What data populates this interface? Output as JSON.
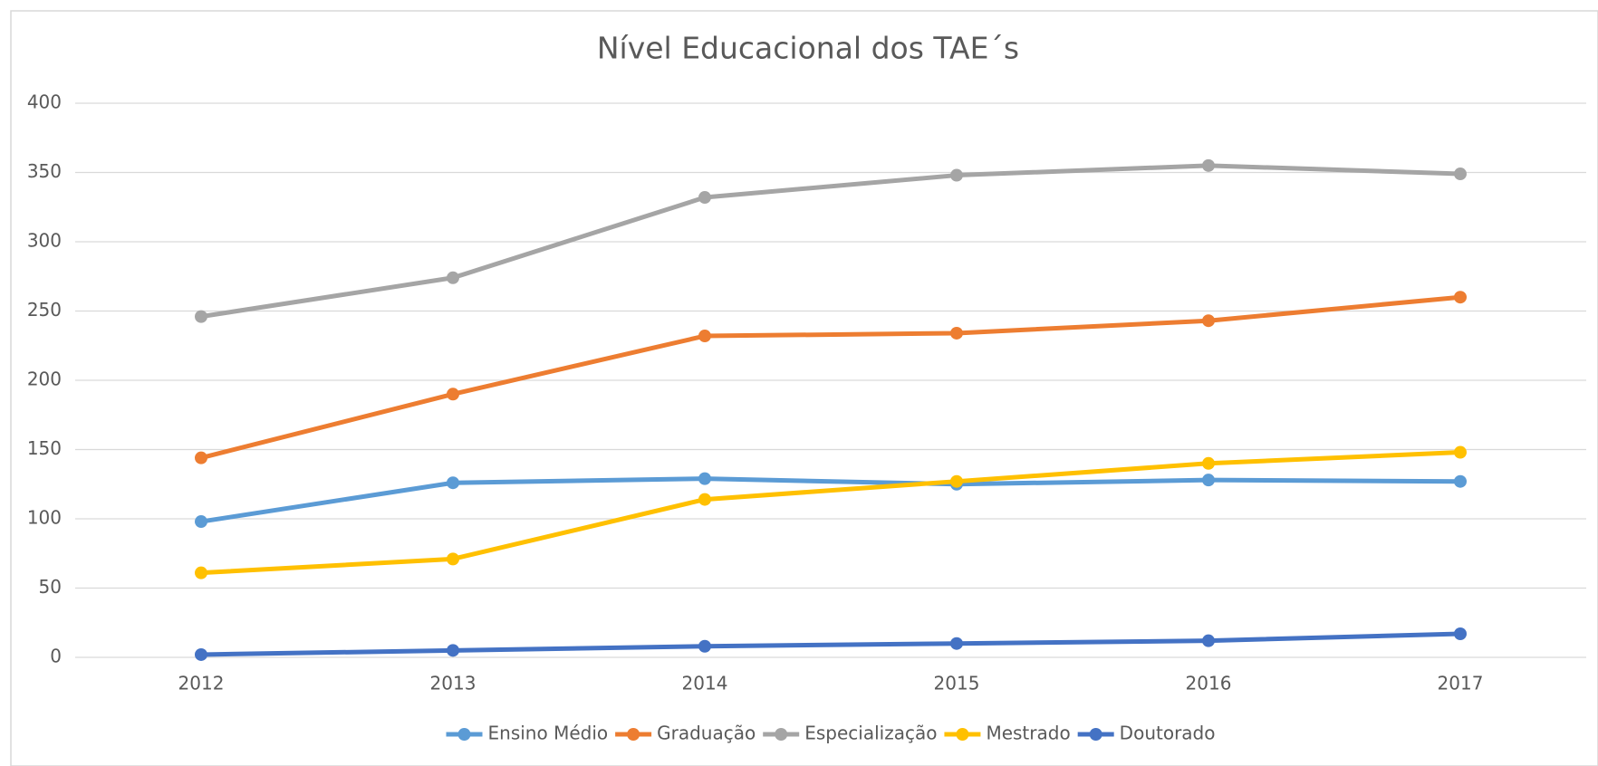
{
  "chart_data": {
    "type": "line",
    "title": "Nível Educacional dos TAE´s",
    "categories": [
      "2012",
      "2013",
      "2014",
      "2015",
      "2016",
      "2017"
    ],
    "series": [
      {
        "name": "Ensino Médio",
        "color": "#5b9bd5",
        "values": [
          98,
          126,
          129,
          125,
          128,
          127
        ]
      },
      {
        "name": "Graduação",
        "color": "#ed7d31",
        "values": [
          144,
          190,
          232,
          234,
          243,
          260
        ]
      },
      {
        "name": "Especialização",
        "color": "#a5a5a5",
        "values": [
          246,
          274,
          332,
          348,
          355,
          349
        ]
      },
      {
        "name": "Mestrado",
        "color": "#ffc000",
        "values": [
          61,
          71,
          114,
          127,
          140,
          148
        ]
      },
      {
        "name": "Doutorado",
        "color": "#4472c4",
        "values": [
          2,
          5,
          8,
          10,
          12,
          17
        ]
      }
    ],
    "ylim": [
      0,
      400
    ],
    "yticks": [
      0,
      50,
      100,
      150,
      200,
      250,
      300,
      350,
      400
    ],
    "grid": true,
    "legend": "bottom"
  }
}
